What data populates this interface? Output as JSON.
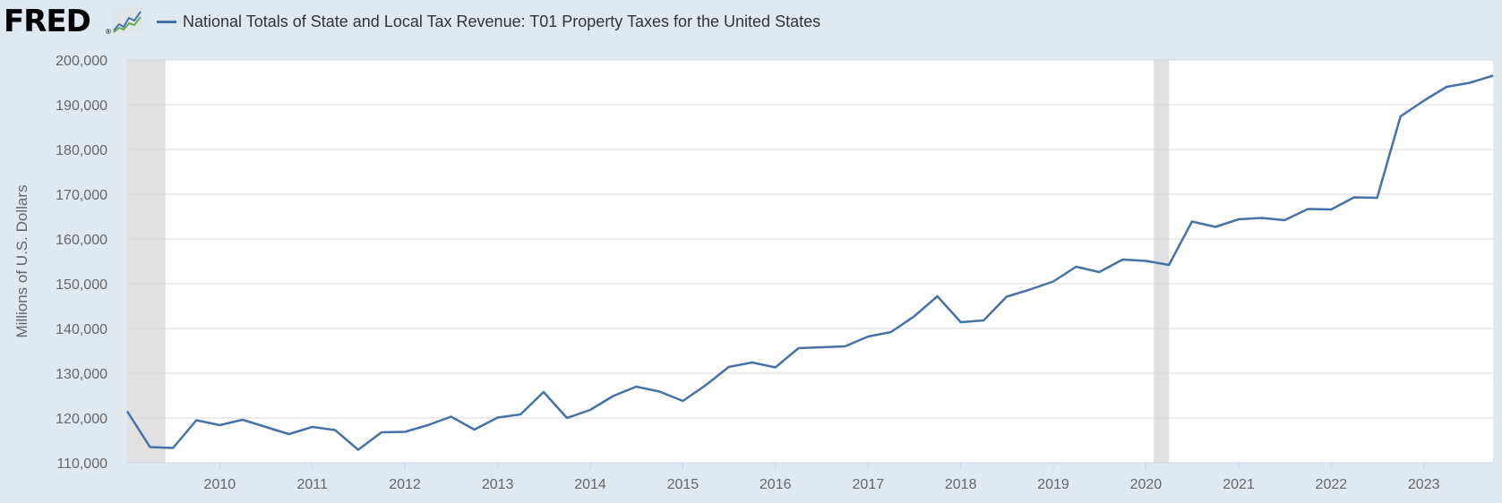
{
  "header": {
    "logo": "FRED",
    "logo_mark": "®",
    "logo_icon": "chart-icon",
    "series_title": "National Totals of State and Local Tax Revenue: T01 Property Taxes for the United States"
  },
  "colors": {
    "background": "#e1e9f0",
    "plot_background": "#ffffff",
    "line": "#4572a7",
    "recession": "#e1e1e1",
    "grid": "#d8d8d8",
    "axis_text": "#666666"
  },
  "chart_data": {
    "type": "line",
    "title": "National Totals of State and Local Tax Revenue: T01 Property Taxes for the United States",
    "ylabel": "Millions of U.S. Dollars",
    "xlabel": "",
    "ylim": [
      110000,
      200000
    ],
    "xlim": [
      "2009-01-01",
      "2023-10-01"
    ],
    "grid": true,
    "x_ticks": [
      "2010",
      "2011",
      "2012",
      "2013",
      "2014",
      "2015",
      "2016",
      "2017",
      "2018",
      "2019",
      "2020",
      "2021",
      "2022",
      "2023"
    ],
    "y_ticks": [
      "110,000",
      "120,000",
      "130,000",
      "140,000",
      "150,000",
      "160,000",
      "170,000",
      "180,000",
      "190,000",
      "200,000"
    ],
    "recessions": [
      {
        "start": "2009-01-01",
        "end": "2009-06-01"
      },
      {
        "start": "2020-02-01",
        "end": "2020-04-01"
      }
    ],
    "series": [
      {
        "x": [
          "2009-01-01",
          "2009-04-01",
          "2009-07-01",
          "2009-10-01",
          "2010-01-01",
          "2010-04-01",
          "2010-07-01",
          "2010-10-01",
          "2011-01-01",
          "2011-04-01",
          "2011-07-01",
          "2011-10-01",
          "2012-01-01",
          "2012-04-01",
          "2012-07-01",
          "2012-10-01",
          "2013-01-01",
          "2013-04-01",
          "2013-07-01",
          "2013-10-01",
          "2014-01-01",
          "2014-04-01",
          "2014-07-01",
          "2014-10-01",
          "2015-01-01",
          "2015-04-01",
          "2015-07-01",
          "2015-10-01",
          "2016-01-01",
          "2016-04-01",
          "2016-07-01",
          "2016-10-01",
          "2017-01-01",
          "2017-04-01",
          "2017-07-01",
          "2017-10-01",
          "2018-01-01",
          "2018-04-01",
          "2018-07-01",
          "2018-10-01",
          "2019-01-01",
          "2019-04-01",
          "2019-07-01",
          "2019-10-01",
          "2020-01-01",
          "2020-04-01",
          "2020-07-01",
          "2020-10-01",
          "2021-01-01",
          "2021-04-01",
          "2021-07-01",
          "2021-10-01",
          "2022-01-01",
          "2022-04-01",
          "2022-07-01",
          "2022-10-01",
          "2023-01-01",
          "2023-04-01",
          "2023-07-01",
          "2023-10-01"
        ],
        "values": [
          121500,
          113500,
          113300,
          119500,
          118400,
          119600,
          118000,
          116400,
          118000,
          117300,
          112900,
          116800,
          116900,
          118400,
          120300,
          117400,
          120100,
          120800,
          125800,
          120000,
          121800,
          124900,
          127000,
          125900,
          123800,
          127300,
          131400,
          132400,
          131300,
          135600,
          135800,
          136000,
          138200,
          139200,
          142700,
          147200,
          141400,
          141800,
          147100,
          148700,
          150500,
          153800,
          152600,
          155400,
          155100,
          154200,
          163900,
          162700,
          164400,
          164700,
          164200,
          166700,
          166600,
          169300,
          169200,
          187400,
          190900,
          194000,
          194900,
          196500
        ]
      }
    ]
  }
}
